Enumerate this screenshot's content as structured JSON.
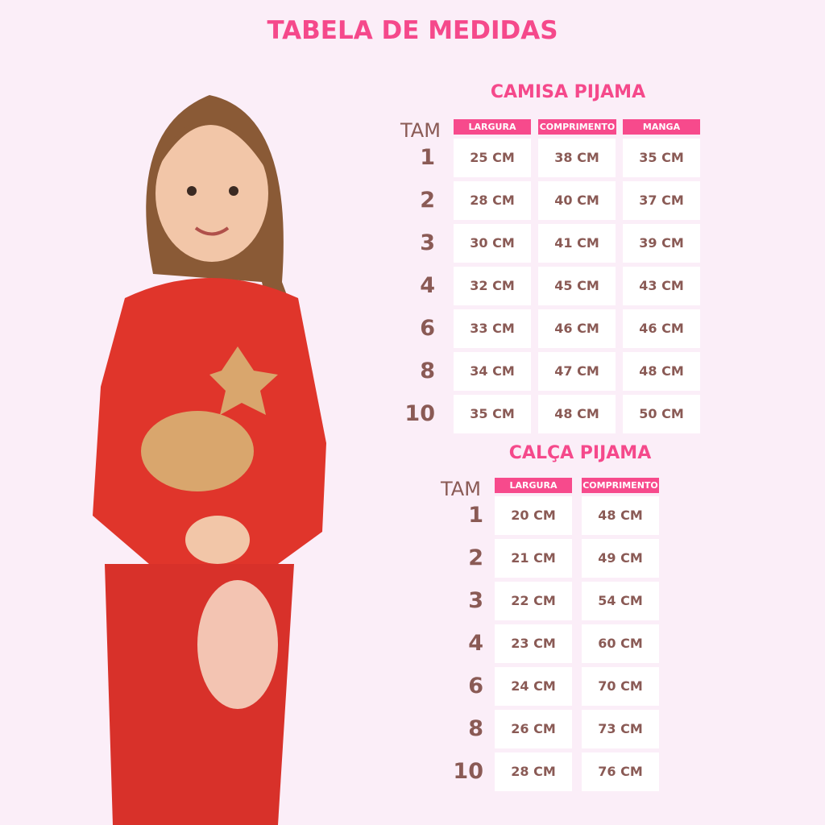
{
  "title": "TABELA DE MEDIDAS",
  "colors": {
    "accent": "#f5498b",
    "header_bg": "#f74a8c",
    "text": "#8a5a55",
    "background": "#fbeef8"
  },
  "shirt": {
    "title": "CAMISA PIJAMA",
    "size_label": "TAM",
    "columns": [
      "LARGURA",
      "COMPRIMENTO",
      "MANGA"
    ],
    "rows": [
      {
        "size": "1",
        "values": [
          "25 CM",
          "38 CM",
          "35 CM"
        ]
      },
      {
        "size": "2",
        "values": [
          "28 CM",
          "40 CM",
          "37 CM"
        ]
      },
      {
        "size": "3",
        "values": [
          "30 CM",
          "41 CM",
          "39 CM"
        ]
      },
      {
        "size": "4",
        "values": [
          "32 CM",
          "45 CM",
          "43 CM"
        ]
      },
      {
        "size": "6",
        "values": [
          "33 CM",
          "46 CM",
          "46 CM"
        ]
      },
      {
        "size": "8",
        "values": [
          "34 CM",
          "47 CM",
          "48 CM"
        ]
      },
      {
        "size": "10",
        "values": [
          "35 CM",
          "48 CM",
          "50 CM"
        ]
      }
    ]
  },
  "pants": {
    "title": "CALÇA PIJAMA",
    "size_label": "TAM",
    "columns": [
      "LARGURA",
      "COMPRIMENTO"
    ],
    "rows": [
      {
        "size": "1",
        "values": [
          "20 CM",
          "48 CM"
        ]
      },
      {
        "size": "2",
        "values": [
          "21 CM",
          "49 CM"
        ]
      },
      {
        "size": "3",
        "values": [
          "22 CM",
          "54 CM"
        ]
      },
      {
        "size": "4",
        "values": [
          "23 CM",
          "60 CM"
        ]
      },
      {
        "size": "6",
        "values": [
          "24 CM",
          "70 CM"
        ]
      },
      {
        "size": "8",
        "values": [
          "26 CM",
          "73 CM"
        ]
      },
      {
        "size": "10",
        "values": [
          "28 CM",
          "76 CM"
        ]
      }
    ]
  }
}
